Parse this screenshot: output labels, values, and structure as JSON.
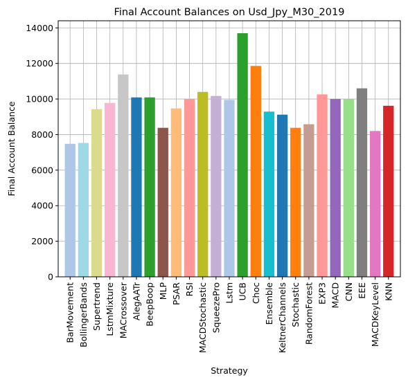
{
  "chart_data": {
    "type": "bar",
    "title": "Final Account Balances on Usd_Jpy_M30_2019",
    "xlabel": "Strategy",
    "ylabel": "Final Account Balance",
    "ylim": [
      0,
      14400
    ],
    "yticks": [
      0,
      2000,
      4000,
      6000,
      8000,
      10000,
      12000,
      14000
    ],
    "grid": true,
    "categories": [
      "BarMovement",
      "BollingerBands",
      "Supertrend",
      "LstmMixture",
      "MACrossover",
      "AlegAATr",
      "BeepBoop",
      "MLP",
      "PSAR",
      "RSI",
      "MACDStochastic",
      "SqueezePro",
      "Lstm",
      "UCB",
      "Choc",
      "Ensemble",
      "KeltnerChannels",
      "Stochastic",
      "RandomForest",
      "EXP3",
      "MACD",
      "CNN",
      "EEE",
      "MACDKeyLevel",
      "KNN"
    ],
    "values": [
      7480,
      7530,
      9430,
      9780,
      11380,
      10090,
      10090,
      8380,
      9470,
      10000,
      10400,
      10170,
      9950,
      13700,
      11860,
      9290,
      9120,
      8380,
      8580,
      10260,
      10000,
      10000,
      10600,
      8200,
      9620
    ],
    "colors": [
      "#aec7e8",
      "#9edae5",
      "#dbdb8d",
      "#f7b6d2",
      "#c7c7c7",
      "#1f77b4",
      "#2ca02c",
      "#8c564b",
      "#ffbb78",
      "#ff9896",
      "#bcbd22",
      "#c5b0d5",
      "#aec7e8",
      "#2ca02c",
      "#ff7f0e",
      "#17becf",
      "#1f77b4",
      "#ff7f0e",
      "#c49c94",
      "#ff9896",
      "#9467bd",
      "#98df8a",
      "#7f7f7f",
      "#e377c2",
      "#d62728"
    ]
  }
}
